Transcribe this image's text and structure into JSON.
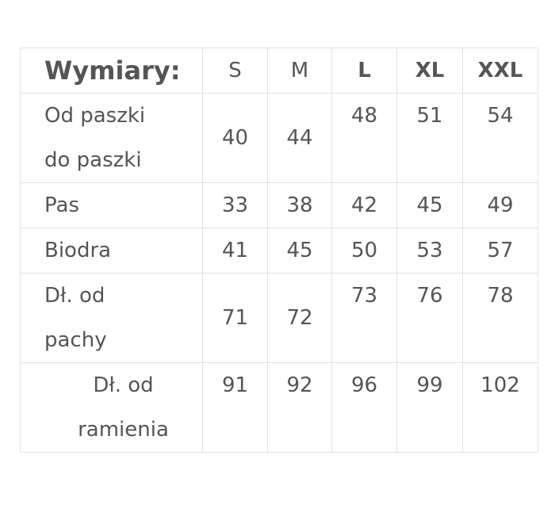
{
  "header": {
    "label": "Wymiary:",
    "sizes": [
      "S",
      "M",
      "L",
      "XL",
      "XXL"
    ]
  },
  "rows": [
    {
      "label": [
        "Od paszki",
        "do paszki"
      ],
      "values": [
        "40",
        "44",
        "48",
        "51",
        "54"
      ]
    },
    {
      "label": [
        "Pas"
      ],
      "values": [
        "33",
        "38",
        "42",
        "45",
        "49"
      ]
    },
    {
      "label": [
        "Biodra"
      ],
      "values": [
        "41",
        "45",
        "50",
        "53",
        "57"
      ]
    },
    {
      "label": [
        "Dł. od",
        "pachy"
      ],
      "values": [
        "71",
        "72",
        "73",
        "76",
        "78"
      ]
    },
    {
      "label": [
        "Dł. od",
        "ramienia"
      ],
      "values": [
        "91",
        "92",
        "96",
        "99",
        "102"
      ]
    }
  ]
}
